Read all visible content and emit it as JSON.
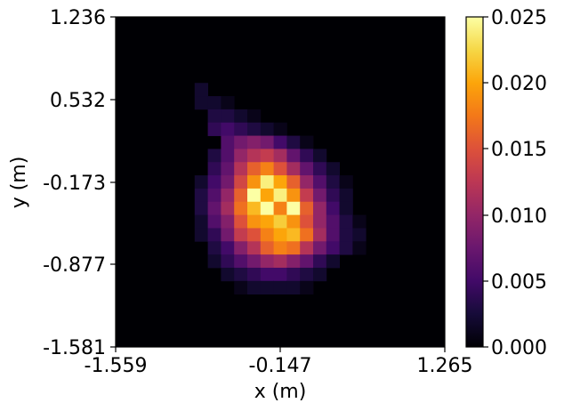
{
  "chart_data": {
    "type": "heatmap",
    "title": "",
    "xlabel": "x (m)",
    "ylabel": "y (m)",
    "xlim": [
      -1.559,
      1.265
    ],
    "ylim": [
      -1.581,
      1.236
    ],
    "x_ticks": [
      "-1.559",
      "-0.147",
      "1.265"
    ],
    "y_ticks": [
      "1.236",
      "0.532",
      "-0.173",
      "-0.877",
      "-1.581"
    ],
    "colormap": "inferno",
    "colorbar": {
      "range": [
        0.0,
        0.025
      ],
      "ticks": [
        "0.000",
        "0.005",
        "0.010",
        "0.015",
        "0.020",
        "0.025"
      ]
    },
    "grid_size": [
      25,
      25
    ],
    "cells": [
      [
        6,
        5,
        0.002
      ],
      [
        6,
        6,
        0.002
      ],
      [
        7,
        6,
        0.002
      ],
      [
        8,
        6,
        0.001
      ],
      [
        7,
        7,
        0.003
      ],
      [
        8,
        7,
        0.003
      ],
      [
        9,
        7,
        0.002
      ],
      [
        10,
        7,
        0.001
      ],
      [
        7,
        8,
        0.004
      ],
      [
        8,
        8,
        0.005
      ],
      [
        9,
        8,
        0.004
      ],
      [
        10,
        8,
        0.003
      ],
      [
        11,
        8,
        0.002
      ],
      [
        12,
        8,
        0.001
      ],
      [
        8,
        9,
        0.006
      ],
      [
        9,
        9,
        0.008
      ],
      [
        10,
        9,
        0.009
      ],
      [
        11,
        9,
        0.008
      ],
      [
        12,
        9,
        0.005
      ],
      [
        13,
        9,
        0.003
      ],
      [
        14,
        9,
        0.001
      ],
      [
        7,
        10,
        0.003
      ],
      [
        8,
        10,
        0.006
      ],
      [
        9,
        10,
        0.01
      ],
      [
        10,
        10,
        0.012
      ],
      [
        11,
        10,
        0.013
      ],
      [
        12,
        10,
        0.011
      ],
      [
        13,
        10,
        0.007
      ],
      [
        14,
        10,
        0.004
      ],
      [
        15,
        10,
        0.002
      ],
      [
        7,
        11,
        0.004
      ],
      [
        8,
        11,
        0.007
      ],
      [
        9,
        11,
        0.012
      ],
      [
        10,
        11,
        0.016
      ],
      [
        11,
        11,
        0.018
      ],
      [
        12,
        11,
        0.015
      ],
      [
        13,
        11,
        0.011
      ],
      [
        14,
        11,
        0.007
      ],
      [
        15,
        11,
        0.004
      ],
      [
        16,
        11,
        0.002
      ],
      [
        6,
        12,
        0.002
      ],
      [
        7,
        12,
        0.005
      ],
      [
        8,
        12,
        0.008
      ],
      [
        9,
        12,
        0.014
      ],
      [
        10,
        12,
        0.019
      ],
      [
        11,
        12,
        0.024
      ],
      [
        12,
        12,
        0.02
      ],
      [
        13,
        12,
        0.016
      ],
      [
        14,
        12,
        0.01
      ],
      [
        15,
        12,
        0.006
      ],
      [
        16,
        12,
        0.003
      ],
      [
        17,
        12,
        0.001
      ],
      [
        6,
        13,
        0.003
      ],
      [
        7,
        13,
        0.006
      ],
      [
        8,
        13,
        0.01
      ],
      [
        9,
        13,
        0.016
      ],
      [
        10,
        13,
        0.025
      ],
      [
        11,
        13,
        0.02
      ],
      [
        12,
        13,
        0.024
      ],
      [
        13,
        13,
        0.019
      ],
      [
        14,
        13,
        0.013
      ],
      [
        15,
        13,
        0.008
      ],
      [
        16,
        13,
        0.004
      ],
      [
        17,
        13,
        0.002
      ],
      [
        6,
        14,
        0.003
      ],
      [
        7,
        14,
        0.007
      ],
      [
        8,
        14,
        0.011
      ],
      [
        9,
        14,
        0.017
      ],
      [
        10,
        14,
        0.021
      ],
      [
        11,
        14,
        0.025
      ],
      [
        12,
        14,
        0.018
      ],
      [
        13,
        14,
        0.025
      ],
      [
        14,
        14,
        0.016
      ],
      [
        15,
        14,
        0.01
      ],
      [
        16,
        14,
        0.005
      ],
      [
        17,
        14,
        0.002
      ],
      [
        6,
        15,
        0.002
      ],
      [
        7,
        15,
        0.006
      ],
      [
        8,
        15,
        0.009
      ],
      [
        9,
        15,
        0.015
      ],
      [
        10,
        15,
        0.019
      ],
      [
        11,
        15,
        0.02
      ],
      [
        12,
        15,
        0.022
      ],
      [
        13,
        15,
        0.019
      ],
      [
        14,
        15,
        0.015
      ],
      [
        15,
        15,
        0.01
      ],
      [
        16,
        15,
        0.006
      ],
      [
        17,
        15,
        0.003
      ],
      [
        18,
        15,
        0.001
      ],
      [
        6,
        16,
        0.002
      ],
      [
        7,
        16,
        0.004
      ],
      [
        8,
        16,
        0.008
      ],
      [
        9,
        16,
        0.013
      ],
      [
        10,
        16,
        0.015
      ],
      [
        11,
        16,
        0.018
      ],
      [
        12,
        16,
        0.02
      ],
      [
        13,
        16,
        0.021
      ],
      [
        14,
        16,
        0.017
      ],
      [
        15,
        16,
        0.011
      ],
      [
        16,
        16,
        0.006
      ],
      [
        17,
        16,
        0.003
      ],
      [
        18,
        16,
        0.002
      ],
      [
        7,
        17,
        0.003
      ],
      [
        8,
        17,
        0.005
      ],
      [
        9,
        17,
        0.009
      ],
      [
        10,
        17,
        0.012
      ],
      [
        11,
        17,
        0.016
      ],
      [
        12,
        17,
        0.018
      ],
      [
        13,
        17,
        0.017
      ],
      [
        14,
        17,
        0.012
      ],
      [
        15,
        17,
        0.008
      ],
      [
        16,
        17,
        0.005
      ],
      [
        17,
        17,
        0.003
      ],
      [
        18,
        17,
        0.001
      ],
      [
        7,
        18,
        0.002
      ],
      [
        8,
        18,
        0.004
      ],
      [
        9,
        18,
        0.006
      ],
      [
        10,
        18,
        0.008
      ],
      [
        11,
        18,
        0.01
      ],
      [
        12,
        18,
        0.011
      ],
      [
        13,
        18,
        0.009
      ],
      [
        14,
        18,
        0.007
      ],
      [
        15,
        18,
        0.004
      ],
      [
        16,
        18,
        0.002
      ],
      [
        8,
        19,
        0.002
      ],
      [
        9,
        19,
        0.003
      ],
      [
        10,
        19,
        0.004
      ],
      [
        11,
        19,
        0.005
      ],
      [
        12,
        19,
        0.005
      ],
      [
        13,
        19,
        0.004
      ],
      [
        14,
        19,
        0.003
      ],
      [
        15,
        19,
        0.002
      ],
      [
        9,
        20,
        0.001
      ],
      [
        10,
        20,
        0.002
      ],
      [
        11,
        20,
        0.002
      ],
      [
        12,
        20,
        0.002
      ],
      [
        13,
        20,
        0.002
      ],
      [
        14,
        20,
        0.001
      ]
    ]
  }
}
